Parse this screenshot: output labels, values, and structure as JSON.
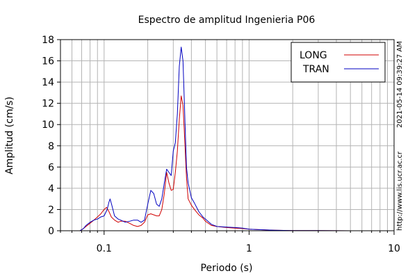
{
  "chart_data": {
    "type": "line",
    "title": "Espectro de amplitud Ingenieria P06",
    "xlabel": "Periodo (s)",
    "ylabel": "Amplitud (cm/s)",
    "xscale": "log",
    "xlim": [
      0.05,
      10
    ],
    "ylim": [
      0,
      18
    ],
    "x_ticks": [
      0.1,
      1,
      10
    ],
    "x_tick_labels": [
      "0.1",
      "1",
      "10"
    ],
    "y_ticks": [
      0,
      2,
      4,
      6,
      8,
      10,
      12,
      14,
      16,
      18
    ],
    "y_tick_labels": [
      "0",
      "2",
      "4",
      "6",
      "8",
      "10",
      "12",
      "14",
      "16",
      "18"
    ],
    "grid": true,
    "legend_position": "top-right",
    "series": [
      {
        "name": "LONG",
        "color": "#d00000",
        "x": [
          0.05,
          0.068,
          0.072,
          0.075,
          0.08,
          0.085,
          0.09,
          0.095,
          0.1,
          0.104,
          0.108,
          0.112,
          0.118,
          0.125,
          0.13,
          0.14,
          0.15,
          0.16,
          0.17,
          0.18,
          0.19,
          0.2,
          0.21,
          0.22,
          0.23,
          0.24,
          0.25,
          0.26,
          0.27,
          0.28,
          0.29,
          0.3,
          0.31,
          0.32,
          0.33,
          0.34,
          0.35,
          0.36,
          0.37,
          0.38,
          0.4,
          0.42,
          0.45,
          0.48,
          0.5,
          0.55,
          0.6,
          0.7,
          0.8,
          0.9,
          1.0,
          1.2,
          1.5,
          2.0,
          3.0,
          5.0,
          10.0
        ],
        "y": [
          0,
          0,
          0.2,
          0.4,
          0.7,
          1.0,
          1.3,
          1.6,
          2.0,
          2.2,
          1.8,
          1.3,
          1.0,
          0.8,
          0.9,
          0.9,
          0.7,
          0.5,
          0.4,
          0.5,
          0.8,
          1.5,
          1.6,
          1.5,
          1.4,
          1.4,
          2.0,
          3.5,
          5.5,
          4.5,
          3.8,
          3.9,
          5.5,
          7.5,
          10.5,
          12.7,
          11.8,
          8.5,
          5.0,
          3.0,
          2.4,
          2.0,
          1.5,
          1.2,
          0.9,
          0.5,
          0.4,
          0.3,
          0.25,
          0.2,
          0.15,
          0.1,
          0.05,
          0.02,
          0.01,
          0,
          0
        ]
      },
      {
        "name": "TRAN",
        "color": "#0000c0",
        "x": [
          0.05,
          0.068,
          0.072,
          0.075,
          0.08,
          0.085,
          0.09,
          0.095,
          0.1,
          0.105,
          0.108,
          0.11,
          0.113,
          0.118,
          0.125,
          0.13,
          0.14,
          0.15,
          0.16,
          0.17,
          0.18,
          0.19,
          0.2,
          0.21,
          0.22,
          0.23,
          0.24,
          0.25,
          0.26,
          0.27,
          0.28,
          0.29,
          0.3,
          0.31,
          0.32,
          0.33,
          0.34,
          0.35,
          0.36,
          0.37,
          0.38,
          0.4,
          0.42,
          0.45,
          0.48,
          0.5,
          0.55,
          0.6,
          0.7,
          0.8,
          0.9,
          1.0,
          1.2,
          1.5,
          2.0,
          3.0,
          5.0,
          10.0
        ],
        "y": [
          0,
          0,
          0.2,
          0.5,
          0.8,
          1.0,
          1.1,
          1.3,
          1.4,
          2.0,
          2.7,
          3.0,
          2.4,
          1.4,
          1.1,
          1.0,
          0.8,
          0.9,
          1.0,
          1.0,
          0.8,
          1.0,
          2.5,
          3.8,
          3.5,
          2.5,
          2.3,
          3.0,
          4.5,
          5.8,
          5.5,
          5.2,
          7.5,
          8.3,
          11.0,
          15.5,
          17.3,
          16.0,
          11.0,
          6.0,
          4.5,
          3.1,
          2.6,
          1.8,
          1.3,
          1.1,
          0.6,
          0.4,
          0.35,
          0.3,
          0.25,
          0.15,
          0.1,
          0.05,
          0.02,
          0.01,
          0,
          0
        ]
      }
    ]
  },
  "side_notes": {
    "timestamp": "2021-05-14 09:39:27 AM",
    "url": "http://www.lis.ucr.ac.cr"
  }
}
